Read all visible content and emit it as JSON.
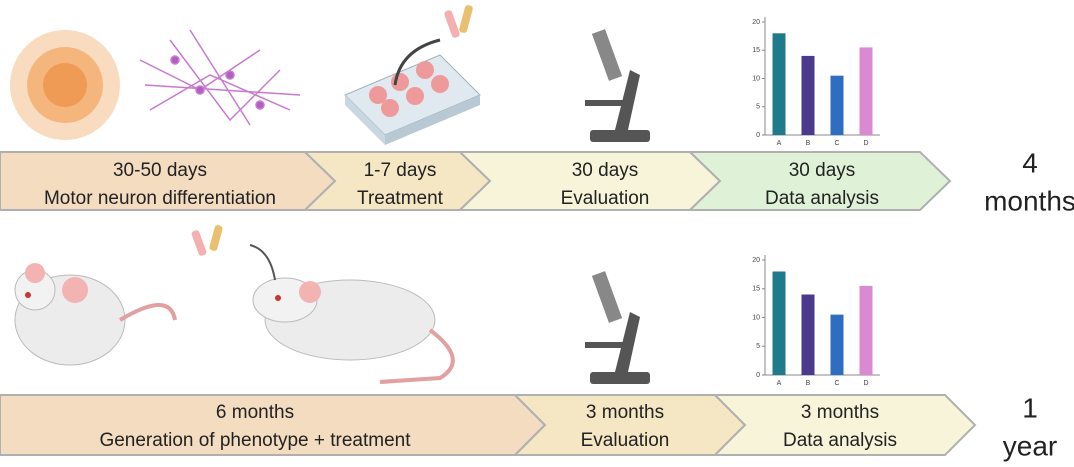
{
  "row1": {
    "stages": [
      {
        "duration": "30-50 days",
        "label": "Motor neuron differentiation"
      },
      {
        "duration": "1-7 days",
        "label": "Treatment"
      },
      {
        "duration": "30 days",
        "label": "Evaluation"
      },
      {
        "duration": "30 days",
        "label": "Data analysis"
      }
    ],
    "total": [
      "4",
      "months"
    ],
    "chart": {
      "type": "bar",
      "categories": [
        "A",
        "B",
        "C",
        "D"
      ],
      "values": [
        18,
        14,
        10.5,
        15.5
      ],
      "colors": [
        "#1f7a8c",
        "#4b3a8c",
        "#2e6dbf",
        "#d98ad0"
      ],
      "ylim": [
        0,
        20
      ],
      "yticks": [
        0,
        5,
        10,
        15,
        20
      ]
    }
  },
  "row2": {
    "stages": [
      {
        "duration": "6 months",
        "label": "Generation of phenotype + treatment"
      },
      {
        "duration": "3 months",
        "label": "Evaluation"
      },
      {
        "duration": "3 months",
        "label": "Data analysis"
      }
    ],
    "total": [
      "1",
      "year"
    ],
    "chart": {
      "type": "bar",
      "categories": [
        "A",
        "B",
        "C",
        "D"
      ],
      "values": [
        18,
        14,
        10.5,
        15.5
      ],
      "colors": [
        "#1f7a8c",
        "#4b3a8c",
        "#2e6dbf",
        "#d98ad0"
      ],
      "ylim": [
        0,
        20
      ],
      "yticks": [
        0,
        5,
        10,
        15,
        20
      ]
    }
  }
}
